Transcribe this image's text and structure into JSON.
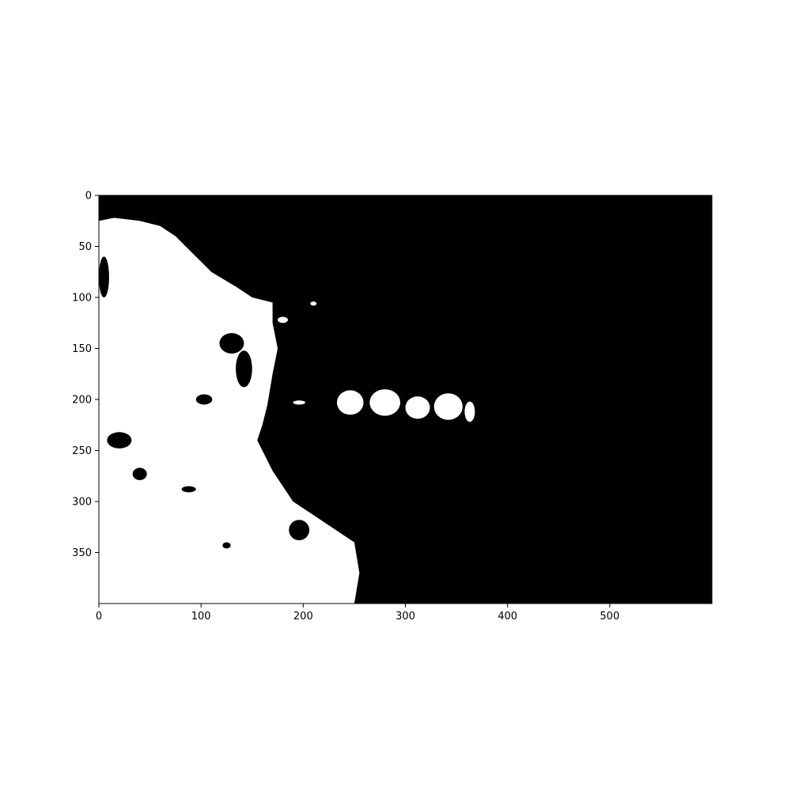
{
  "chart_data": {
    "type": "heatmap",
    "title": "",
    "xlabel": "",
    "ylabel": "",
    "image_width": 600,
    "image_height": 400,
    "xlim": [
      0,
      600
    ],
    "ylim": [
      400,
      0
    ],
    "colormap": "binary mask (0 = black, 1 = white)",
    "colors": {
      "background": "#000000",
      "foreground": "#ffffff"
    },
    "xticks": [
      0,
      100,
      200,
      300,
      400,
      500
    ],
    "xtick_labels": [
      "0",
      "100",
      "200",
      "300",
      "400",
      "500"
    ],
    "yticks": [
      0,
      50,
      100,
      150,
      200,
      250,
      300,
      350
    ],
    "ytick_labels": [
      "0",
      "50",
      "100",
      "150",
      "200",
      "250",
      "300",
      "350"
    ],
    "regions": [
      {
        "name": "left-white-mass",
        "value": 1,
        "outline": [
          [
            0,
            25
          ],
          [
            15,
            22
          ],
          [
            40,
            25
          ],
          [
            60,
            30
          ],
          [
            75,
            40
          ],
          [
            90,
            55
          ],
          [
            110,
            75
          ],
          [
            135,
            90
          ],
          [
            150,
            100
          ],
          [
            170,
            105
          ],
          [
            170,
            125
          ],
          [
            175,
            150
          ],
          [
            170,
            175
          ],
          [
            165,
            205
          ],
          [
            160,
            225
          ],
          [
            155,
            240
          ],
          [
            170,
            270
          ],
          [
            190,
            300
          ],
          [
            220,
            320
          ],
          [
            250,
            340
          ],
          [
            255,
            370
          ],
          [
            250,
            400
          ],
          [
            0,
            400
          ]
        ]
      },
      {
        "name": "dark-blob-1",
        "value": 0,
        "ellipse": [
          40,
          273,
          7,
          6
        ]
      },
      {
        "name": "dark-blob-2",
        "value": 0,
        "ellipse": [
          196,
          328,
          10,
          10
        ]
      },
      {
        "name": "dark-blob-3",
        "value": 0,
        "ellipse": [
          103,
          200,
          8,
          5
        ]
      },
      {
        "name": "dark-blob-4",
        "value": 0,
        "ellipse": [
          88,
          288,
          7,
          3
        ]
      },
      {
        "name": "dark-blob-5",
        "value": 0,
        "ellipse": [
          130,
          145,
          12,
          10
        ]
      },
      {
        "name": "dark-blob-6",
        "value": 0,
        "ellipse": [
          142,
          170,
          8,
          18
        ]
      },
      {
        "name": "dark-blob-7",
        "value": 0,
        "ellipse": [
          20,
          240,
          12,
          8
        ]
      },
      {
        "name": "dark-blob-8",
        "value": 0,
        "ellipse": [
          5,
          80,
          5,
          20
        ]
      },
      {
        "name": "dark-blob-9",
        "value": 0,
        "ellipse": [
          125,
          343,
          4,
          3
        ]
      },
      {
        "name": "white-bump-1",
        "value": 1,
        "ellipse": [
          246,
          203,
          13,
          12
        ]
      },
      {
        "name": "white-bump-2",
        "value": 1,
        "ellipse": [
          280,
          203,
          15,
          13
        ]
      },
      {
        "name": "white-bump-3",
        "value": 1,
        "ellipse": [
          312,
          208,
          12,
          11
        ]
      },
      {
        "name": "white-bump-4",
        "value": 1,
        "ellipse": [
          342,
          207,
          14,
          13
        ]
      },
      {
        "name": "white-bump-5",
        "value": 1,
        "ellipse": [
          363,
          212,
          5,
          10
        ]
      },
      {
        "name": "white-speck-1",
        "value": 1,
        "ellipse": [
          210,
          106,
          3,
          2
        ]
      },
      {
        "name": "white-speck-2",
        "value": 1,
        "ellipse": [
          196,
          203,
          6,
          2
        ]
      },
      {
        "name": "white-speck-3",
        "value": 1,
        "ellipse": [
          180,
          122,
          5,
          3
        ]
      }
    ]
  }
}
